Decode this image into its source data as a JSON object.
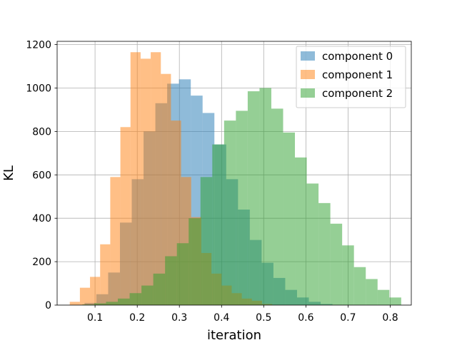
{
  "chart_data": {
    "type": "histogram",
    "xlabel": "iteration",
    "ylabel": "KL",
    "xlim": [
      0.01,
      0.85
    ],
    "ylim": [
      0,
      1215
    ],
    "xticks": [
      0.1,
      0.2,
      0.3,
      0.4,
      0.5,
      0.6,
      0.7,
      0.8
    ],
    "xtick_labels": [
      "0.1",
      "0.2",
      "0.3",
      "0.4",
      "0.5",
      "0.6",
      "0.7",
      "0.8"
    ],
    "yticks": [
      0,
      200,
      400,
      600,
      800,
      1000,
      1200
    ],
    "ytick_labels": [
      "0",
      "200",
      "400",
      "600",
      "800",
      "1000",
      "1200"
    ],
    "grid": true,
    "legend_position": "upper right",
    "series": [
      {
        "name": "component 0",
        "color": "#1f77b4",
        "alpha": 0.5,
        "bin_edges": [
          0.075,
          0.103,
          0.131,
          0.159,
          0.187,
          0.215,
          0.243,
          0.271,
          0.299,
          0.327,
          0.355,
          0.383,
          0.411,
          0.439,
          0.467,
          0.495,
          0.523,
          0.551,
          0.579,
          0.607,
          0.635,
          0.663
        ],
        "counts": [
          10,
          50,
          150,
          380,
          580,
          800,
          930,
          1020,
          1040,
          965,
          885,
          740,
          580,
          440,
          300,
          195,
          125,
          70,
          35,
          15,
          5
        ]
      },
      {
        "name": "component 1",
        "color": "#ff7f0e",
        "alpha": 0.5,
        "bin_edges": [
          0.04,
          0.064,
          0.088,
          0.112,
          0.136,
          0.16,
          0.184,
          0.208,
          0.232,
          0.256,
          0.28,
          0.304,
          0.328,
          0.352,
          0.376,
          0.4,
          0.424,
          0.448,
          0.472,
          0.496,
          0.52
        ],
        "counts": [
          15,
          80,
          130,
          280,
          590,
          820,
          1165,
          1135,
          1165,
          1065,
          850,
          590,
          405,
          240,
          145,
          90,
          55,
          30,
          20,
          5
        ]
      },
      {
        "name": "component 2",
        "color": "#2ca02c",
        "alpha": 0.5,
        "bin_edges": [
          0.07,
          0.098,
          0.126,
          0.154,
          0.182,
          0.21,
          0.238,
          0.266,
          0.294,
          0.322,
          0.35,
          0.378,
          0.406,
          0.434,
          0.462,
          0.49,
          0.518,
          0.546,
          0.574,
          0.602,
          0.63,
          0.658,
          0.686,
          0.714,
          0.742,
          0.77,
          0.798,
          0.826
        ],
        "counts": [
          3,
          8,
          15,
          30,
          55,
          90,
          145,
          225,
          285,
          400,
          590,
          740,
          850,
          895,
          985,
          1000,
          905,
          795,
          680,
          560,
          470,
          375,
          275,
          175,
          120,
          70,
          35
        ]
      }
    ]
  }
}
